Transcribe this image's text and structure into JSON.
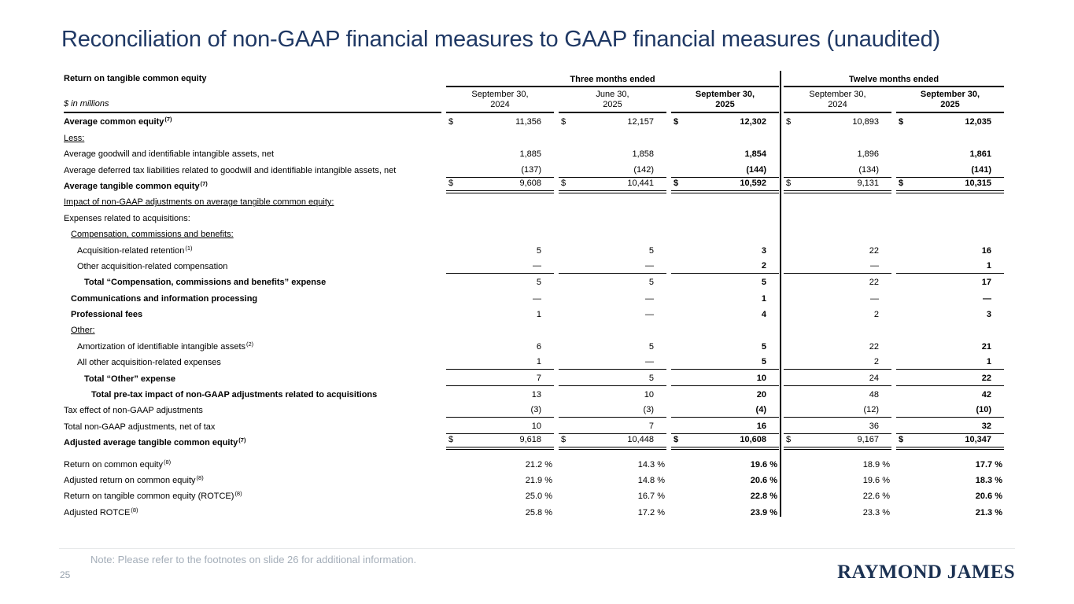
{
  "page": {
    "title": "Reconciliation of non-GAAP financial measures to GAAP financial measures (unaudited)",
    "note": "Note: Please refer to the footnotes on slide 26 for additional information.",
    "page_number": "25",
    "logo": "RAYMOND JAMES"
  },
  "colors": {
    "title_navy": "#1f3864",
    "logo_navy": "#1c3253",
    "table_text": "#000000",
    "muted_gray": "#a4aeb9",
    "footer_rule": "#e7e9ea"
  },
  "table": {
    "caption": "Return on tangible common equity",
    "unit_label": "$ in millions",
    "currency_symbol": "$",
    "col_groups": [
      {
        "label": "Three months ended",
        "span": 3
      },
      {
        "label": "Twelve months ended",
        "span": 2
      }
    ],
    "columns": [
      {
        "line1": "September 30,",
        "line2": "2024",
        "bold": false
      },
      {
        "line1": "June 30,",
        "line2": "2025",
        "bold": false
      },
      {
        "line1": "September 30,",
        "line2": "2025",
        "bold": true
      },
      {
        "line1": "September 30,",
        "line2": "2024",
        "bold": false
      },
      {
        "line1": "September 30,",
        "line2": "2025",
        "bold": true
      }
    ],
    "rows": [
      {
        "label": "Average common equity",
        "sup": "(7)",
        "bold": true,
        "dollar": true,
        "values": [
          "11,356",
          "12,157",
          "12,302",
          "10,893",
          "12,035"
        ]
      },
      {
        "label": "Less:",
        "underline": true
      },
      {
        "label": "Average goodwill and identifiable intangible assets, net",
        "values": [
          "1,885",
          "1,858",
          "1,854",
          "1,896",
          "1,861"
        ]
      },
      {
        "label": "Average deferred tax liabilities related to goodwill and identifiable intangible assets, net",
        "values": [
          "(137)",
          "(142)",
          "(144)",
          "(134)",
          "(141)"
        ],
        "border": "single"
      },
      {
        "label": "Average tangible common equity",
        "sup": "(7)",
        "bold": true,
        "dollar": true,
        "values": [
          "9,608",
          "10,441",
          "10,592",
          "9,131",
          "10,315"
        ],
        "border": "double"
      },
      {
        "label": "Impact of non-GAAP adjustments on average tangible common equity:",
        "underline": true
      },
      {
        "label": "Expenses related to acquisitions:"
      },
      {
        "label": "Compensation, commissions and benefits:",
        "underline": true,
        "indent": 1
      },
      {
        "label": "Acquisition-related retention",
        "sup": "(1)",
        "indent": 2,
        "values": [
          "5",
          "5",
          "3",
          "22",
          "16"
        ]
      },
      {
        "label": "Other acquisition-related compensation",
        "indent": 2,
        "values": [
          "—",
          "—",
          "2",
          "—",
          "1"
        ],
        "border": "single"
      },
      {
        "label": "Total “Compensation, commissions and benefits” expense",
        "bold": true,
        "indent": 3,
        "values": [
          "5",
          "5",
          "5",
          "22",
          "17"
        ]
      },
      {
        "label": "Communications and information processing",
        "bold": true,
        "indent": 1,
        "values": [
          "—",
          "—",
          "1",
          "—",
          "—"
        ]
      },
      {
        "label": "Professional fees",
        "bold": true,
        "indent": 1,
        "values": [
          "1",
          "—",
          "4",
          "2",
          "3"
        ]
      },
      {
        "label": "Other:",
        "underline": true,
        "indent": 1
      },
      {
        "label": "Amortization of identifiable intangible assets",
        "sup": "(2)",
        "indent": 2,
        "values": [
          "6",
          "5",
          "5",
          "22",
          "21"
        ]
      },
      {
        "label": "All other acquisition-related expenses",
        "indent": 2,
        "values": [
          "1",
          "—",
          "5",
          "2",
          "1"
        ],
        "border": "single"
      },
      {
        "label": "Total “Other” expense",
        "bold": true,
        "indent": 3,
        "values": [
          "7",
          "5",
          "10",
          "24",
          "22"
        ],
        "border": "single"
      },
      {
        "label": "Total pre-tax impact of non-GAAP adjustments related to acquisitions",
        "bold": true,
        "indent": 4,
        "values": [
          "13",
          "10",
          "20",
          "48",
          "42"
        ]
      },
      {
        "label": "Tax effect of non-GAAP adjustments",
        "values": [
          "(3)",
          "(3)",
          "(4)",
          "(12)",
          "(10)"
        ],
        "border": "single"
      },
      {
        "label": "Total non-GAAP adjustments, net of tax",
        "values": [
          "10",
          "7",
          "16",
          "36",
          "32"
        ],
        "border": "single"
      },
      {
        "label": "Adjusted average tangible common equity",
        "sup": "(7)",
        "bold": true,
        "dollar": true,
        "values": [
          "9,618",
          "10,448",
          "10,608",
          "9,167",
          "10,347"
        ],
        "border": "double"
      },
      {
        "label": "Return on common equity",
        "sup": "(8)",
        "gap": true,
        "values": [
          "21.2 %",
          "14.3 %",
          "19.6 %",
          "18.9 %",
          "17.7 %"
        ]
      },
      {
        "label": "Adjusted return on common equity",
        "sup": "(8)",
        "values": [
          "21.9 %",
          "14.8 %",
          "20.6 %",
          "19.6 %",
          "18.3 %"
        ]
      },
      {
        "label": "Return on tangible common equity (ROTCE)",
        "sup": "(8)",
        "values": [
          "25.0 %",
          "16.7 %",
          "22.8 %",
          "22.6 %",
          "20.6 %"
        ]
      },
      {
        "label": "Adjusted ROTCE",
        "sup": "(8)",
        "values": [
          "25.8 %",
          "17.2 %",
          "23.9 %",
          "23.3 %",
          "21.3 %"
        ]
      }
    ]
  }
}
